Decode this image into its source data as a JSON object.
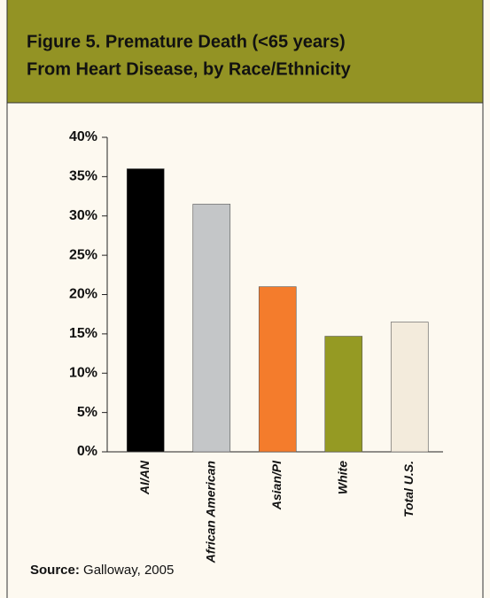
{
  "chart_data": {
    "type": "bar",
    "title": [
      "Figure 5. Premature Death (<65 years)",
      "From Heart Disease, by Race/Ethnicity"
    ],
    "categories": [
      "AI/AN",
      "African American",
      "Asian/PI",
      "White",
      "Total U.S."
    ],
    "values": [
      36,
      31.5,
      21,
      14.7,
      16.5
    ],
    "colors": [
      "#000000",
      "#c4c6c8",
      "#f47c2c",
      "#959a23",
      "#f3ebdc"
    ],
    "ylim": [
      0,
      40
    ],
    "yticks": [
      {
        "value": 0,
        "label": "0%"
      },
      {
        "value": 5,
        "label": "5%"
      },
      {
        "value": 10,
        "label": "10%"
      },
      {
        "value": 15,
        "label": "15%"
      },
      {
        "value": 20,
        "label": "20%"
      },
      {
        "value": 25,
        "label": "25%"
      },
      {
        "value": 30,
        "label": "30%"
      },
      {
        "value": 35,
        "label": "35%"
      },
      {
        "value": 40,
        "label": "40%"
      }
    ],
    "grid": false,
    "source_label": "Source:",
    "source_text": "Galloway, 2005"
  }
}
